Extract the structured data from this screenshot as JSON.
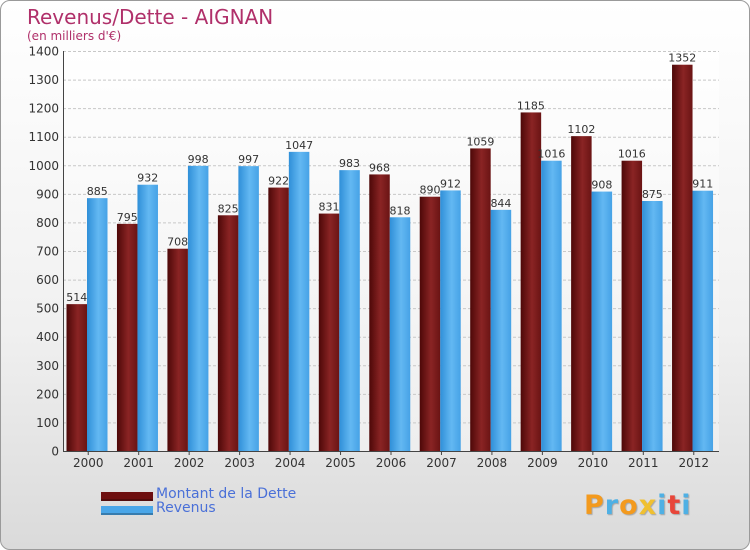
{
  "title": "Revenus/Dette - AIGNAN",
  "subtitle": "(en milliers d'€)",
  "logo": {
    "text": "Proxiti",
    "letter_colors": [
      "#f39a1e",
      "#4fb0e4",
      "#f39a1e",
      "#f0c030",
      "#4fb0e4",
      "#e8463a",
      "#4fb0e4"
    ]
  },
  "legend": {
    "position": "bottom-left",
    "items": [
      {
        "label": "Montant de la Dette",
        "color": "#6e1010"
      },
      {
        "label": "Revenus",
        "color": "#4aa6e8"
      }
    ]
  },
  "chart_data": {
    "type": "bar",
    "title": "Revenus/Dette - AIGNAN",
    "subtitle": "(en milliers d'€)",
    "categories": [
      "2000",
      "2001",
      "2002",
      "2003",
      "2004",
      "2005",
      "2006",
      "2007",
      "2008",
      "2009",
      "2010",
      "2011",
      "2012"
    ],
    "series": [
      {
        "name": "Montant de la Dette",
        "color": "#6e1010",
        "values": [
          514,
          795,
          708,
          825,
          922,
          831,
          968,
          890,
          1059,
          1185,
          1102,
          1016,
          1352
        ]
      },
      {
        "name": "Revenus",
        "color": "#4aa6e8",
        "values": [
          885,
          932,
          998,
          997,
          1047,
          983,
          818,
          912,
          844,
          1016,
          908,
          875,
          911
        ]
      }
    ],
    "yticks": [
      0,
      100,
      200,
      300,
      400,
      500,
      600,
      700,
      800,
      900,
      1000,
      1100,
      1200,
      1300,
      1400
    ],
    "ylim": [
      0,
      1400
    ],
    "grid": true
  }
}
